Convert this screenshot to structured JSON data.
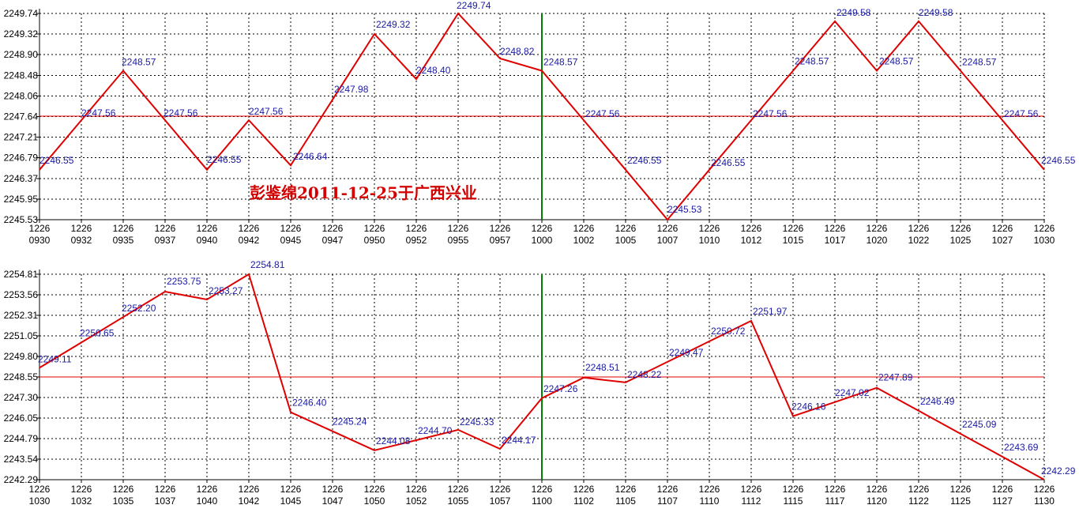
{
  "colors": {
    "line": "#e00000",
    "grid": "#000000",
    "axis": "#000000",
    "center_marker": "#008000",
    "data_label": "#1a1aa6",
    "watermark": "#d40000",
    "background": "#ffffff"
  },
  "watermark": "彭鉴绵2011-12-25于广西兴业",
  "chart_data": [
    {
      "type": "line",
      "title": "",
      "xlabel": "",
      "ylabel": "",
      "grid": true,
      "x": [
        [
          "1226",
          "0930"
        ],
        [
          "1226",
          "0932"
        ],
        [
          "1226",
          "0935"
        ],
        [
          "1226",
          "0937"
        ],
        [
          "1226",
          "0940"
        ],
        [
          "1226",
          "0942"
        ],
        [
          "1226",
          "0945"
        ],
        [
          "1226",
          "0947"
        ],
        [
          "1226",
          "0950"
        ],
        [
          "1226",
          "0952"
        ],
        [
          "1226",
          "0955"
        ],
        [
          "1226",
          "0957"
        ],
        [
          "1226",
          "1000"
        ],
        [
          "1226",
          "1002"
        ],
        [
          "1226",
          "1005"
        ],
        [
          "1226",
          "1007"
        ],
        [
          "1226",
          "1010"
        ],
        [
          "1226",
          "1012"
        ],
        [
          "1226",
          "1015"
        ],
        [
          "1226",
          "1017"
        ],
        [
          "1226",
          "1020"
        ],
        [
          "1226",
          "1022"
        ],
        [
          "1226",
          "1025"
        ],
        [
          "1226",
          "1027"
        ],
        [
          "1226",
          "1030"
        ]
      ],
      "yticks": [
        "2249.74",
        "2249.32",
        "2248.90",
        "2248.48",
        "2248.06",
        "2247.64",
        "2247.21",
        "2246.79",
        "2246.37",
        "2245.95",
        "2245.53"
      ],
      "ylim": [
        2245.53,
        2249.74
      ],
      "reference_line": 2247.64,
      "marker_index": 12,
      "values": [
        2246.55,
        2247.56,
        2248.57,
        2247.56,
        2246.55,
        2247.56,
        2246.64,
        2247.98,
        2249.32,
        2248.4,
        2249.74,
        2248.82,
        2248.57,
        2247.56,
        2246.55,
        2245.53,
        2246.55,
        2247.56,
        2248.57,
        2249.58,
        2248.57,
        2249.58,
        2248.57,
        2247.56,
        2246.55
      ],
      "data_labels": [
        "2246.55",
        "2247.56",
        "2248.57",
        "2247.56",
        "2246.55",
        "2247.56",
        "2246.64",
        "2247.98",
        "2249.32",
        "2248.40",
        "2249.74",
        "2248.82",
        "2248.57",
        "2247.56",
        "2246.55",
        "2245.53",
        "2246.55",
        "2247.56",
        "2248.57",
        "2249.58",
        "2248.57",
        "2249.58",
        "2248.57",
        "2247.56",
        "2246.55"
      ]
    },
    {
      "type": "line",
      "title": "",
      "xlabel": "",
      "ylabel": "",
      "grid": true,
      "x": [
        [
          "1226",
          "1030"
        ],
        [
          "1226",
          "1032"
        ],
        [
          "1226",
          "1035"
        ],
        [
          "1226",
          "1037"
        ],
        [
          "1226",
          "1040"
        ],
        [
          "1226",
          "1042"
        ],
        [
          "1226",
          "1045"
        ],
        [
          "1226",
          "1047"
        ],
        [
          "1226",
          "1050"
        ],
        [
          "1226",
          "1052"
        ],
        [
          "1226",
          "1055"
        ],
        [
          "1226",
          "1057"
        ],
        [
          "1226",
          "1100"
        ],
        [
          "1226",
          "1102"
        ],
        [
          "1226",
          "1105"
        ],
        [
          "1226",
          "1107"
        ],
        [
          "1226",
          "1110"
        ],
        [
          "1226",
          "1112"
        ],
        [
          "1226",
          "1115"
        ],
        [
          "1226",
          "1117"
        ],
        [
          "1226",
          "1120"
        ],
        [
          "1226",
          "1122"
        ],
        [
          "1226",
          "1125"
        ],
        [
          "1226",
          "1127"
        ],
        [
          "1226",
          "1130"
        ]
      ],
      "yticks": [
        "2254.81",
        "2253.56",
        "2252.31",
        "2251.05",
        "2249.80",
        "2248.55",
        "2247.30",
        "2246.05",
        "2244.79",
        "2243.54",
        "2242.29"
      ],
      "ylim": [
        2242.29,
        2254.81
      ],
      "reference_line": 2248.55,
      "marker_index": 12,
      "values": [
        2249.11,
        2250.65,
        2252.2,
        2253.75,
        2253.27,
        2254.81,
        2246.4,
        2245.24,
        2244.08,
        2244.7,
        2245.33,
        2244.17,
        2247.26,
        2248.51,
        2248.22,
        2249.47,
        2250.72,
        2251.97,
        2246.16,
        2247.02,
        2247.89,
        2246.49,
        2245.09,
        2243.69,
        2242.29
      ],
      "data_labels": [
        "2249.11",
        "2250.65",
        "2252.20",
        "2253.75",
        "2253.27",
        "2254.81",
        "2246.40",
        "2245.24",
        "2244.08",
        "2244.70",
        "2245.33",
        "2244.17",
        "2247.26",
        "2248.51",
        "2248.22",
        "2249.47",
        "2250.72",
        "2251.97",
        "2246.16",
        "2247.02",
        "2247.89",
        "2246.49",
        "2245.09",
        "2243.69",
        "2242.29"
      ]
    }
  ]
}
